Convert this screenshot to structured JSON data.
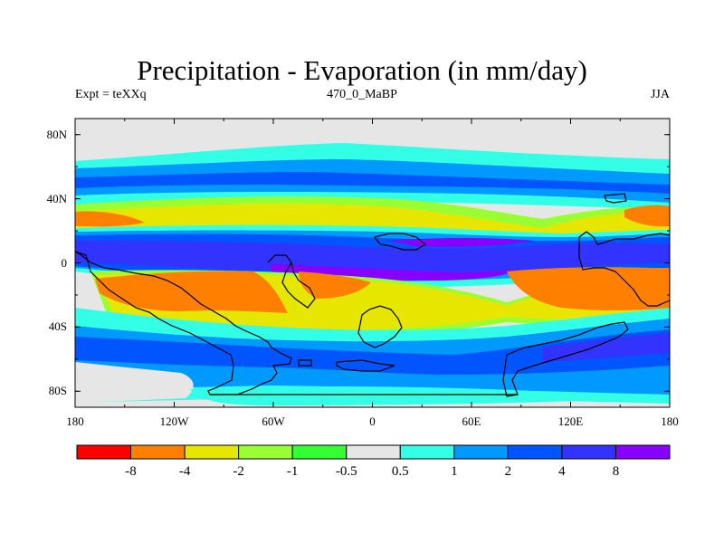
{
  "title": "Precipitation - Evaporation (in mm/day)",
  "subtitle_left": "Expt = teXXq",
  "subtitle_center": "470_0_MaBP",
  "subtitle_right": "JJA",
  "lat_labels": [
    "80N",
    "40N",
    "0",
    "40S",
    "80S"
  ],
  "lon_labels": [
    "180",
    "120W",
    "60W",
    "0",
    "60E",
    "120E",
    "180"
  ],
  "colorbar": {
    "colors": [
      "#ff0000",
      "#ff8000",
      "#e6e600",
      "#99ff33",
      "#33ff33",
      "#e6e6e6",
      "#33ffe6",
      "#0099ff",
      "#0055ff",
      "#3333ff",
      "#8800ff"
    ],
    "labels": [
      "-8",
      "-4",
      "-2",
      "-1",
      "-0.5",
      "0.5",
      "1",
      "2",
      "4",
      "8"
    ]
  },
  "field_colors": {
    "bg": "#e6e6e6",
    "cyan": "#33ffe6",
    "lblue": "#0099ff",
    "blue": "#0055ff",
    "dblue": "#3333ff",
    "purple": "#8800ff",
    "green": "#33ff33",
    "lgreen": "#99ff33",
    "yellow": "#e6e600",
    "orange": "#ff8000",
    "coast": "#000000"
  }
}
